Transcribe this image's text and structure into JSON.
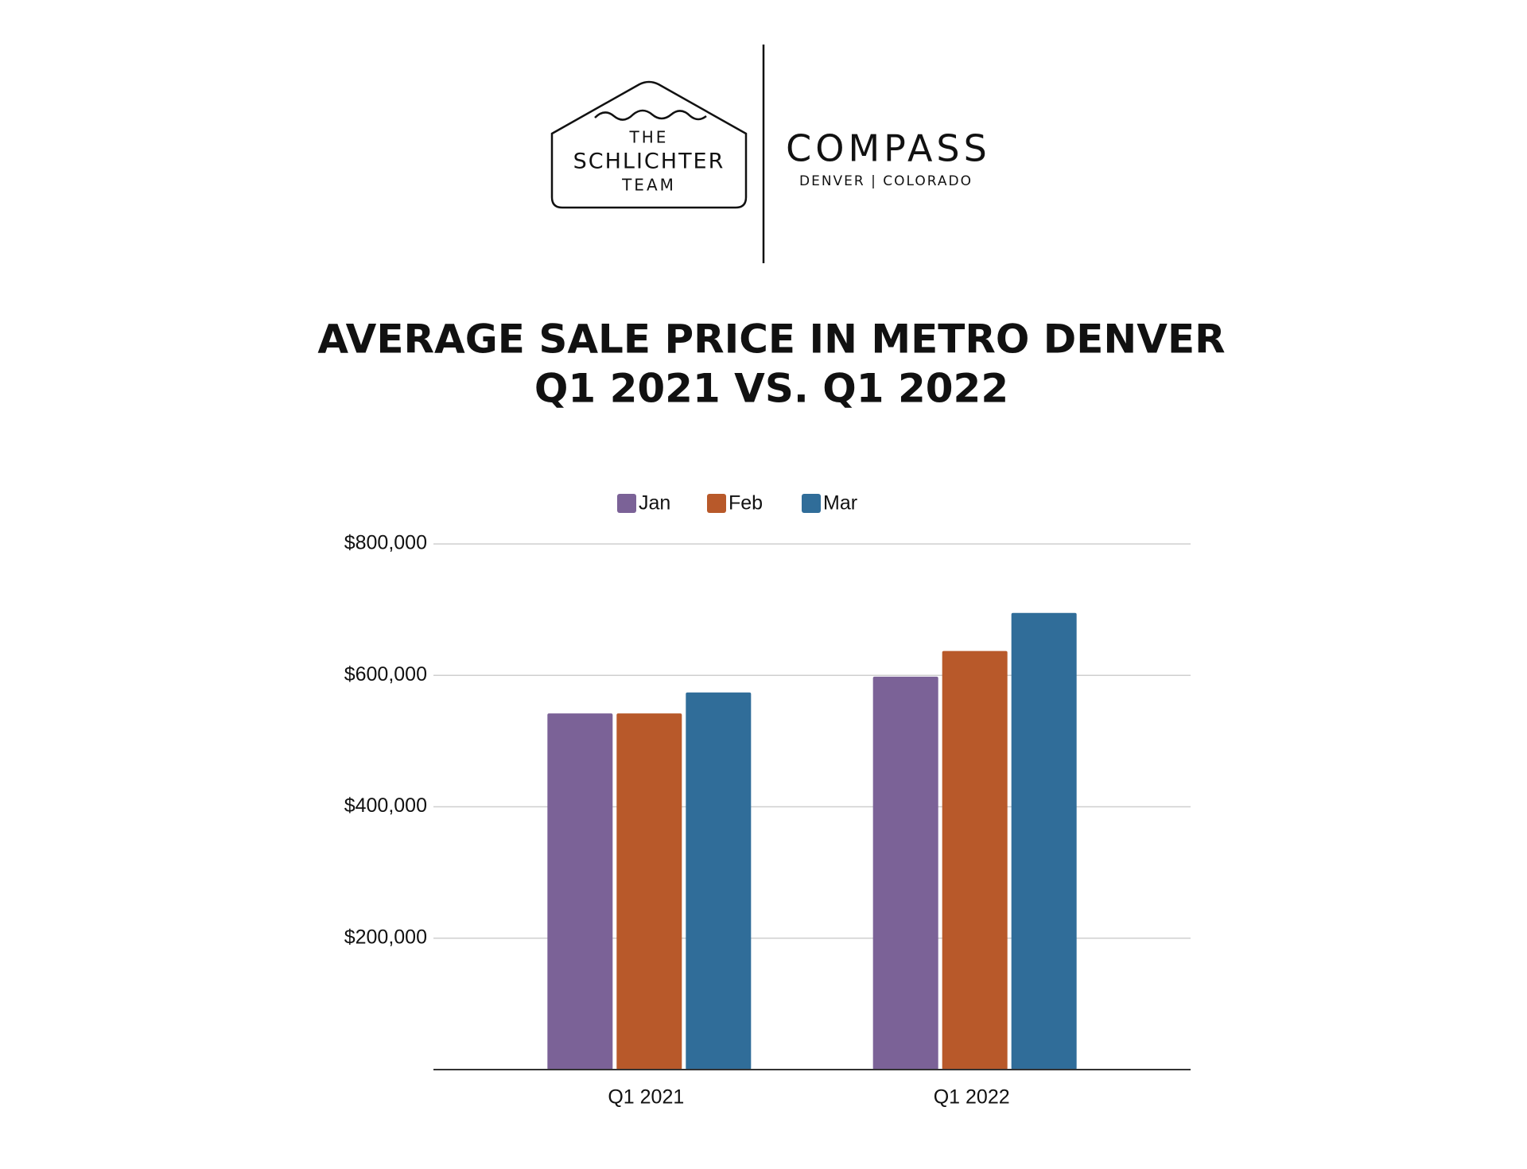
{
  "header": {
    "logo_line1": "THE",
    "logo_line2": "SCHLICHTER",
    "logo_line3": "TEAM",
    "brand": "COMPASS",
    "brand_location": "DENVER | COLORADO"
  },
  "chart_data": {
    "type": "bar",
    "title": "AVERAGE SALE PRICE IN METRO DENVER",
    "subtitle": "Q1 2021 VS. Q1 2022",
    "categories": [
      "Q1 2021",
      "Q1 2022"
    ],
    "series": [
      {
        "name": "Jan",
        "color": "#7b6297",
        "values": [
          542000,
          598000
        ]
      },
      {
        "name": "Feb",
        "color": "#b8592a",
        "values": [
          542000,
          637000
        ]
      },
      {
        "name": "Mar",
        "color": "#306d99",
        "values": [
          574000,
          695000
        ]
      }
    ],
    "ylim": [
      0,
      800000
    ],
    "yticks": [
      {
        "value": 200000,
        "label": "$200,000"
      },
      {
        "value": 400000,
        "label": "$400,000"
      },
      {
        "value": 600000,
        "label": "$600,000"
      },
      {
        "value": 800000,
        "label": "$800,000"
      }
    ],
    "grid": true,
    "legend": "top"
  }
}
